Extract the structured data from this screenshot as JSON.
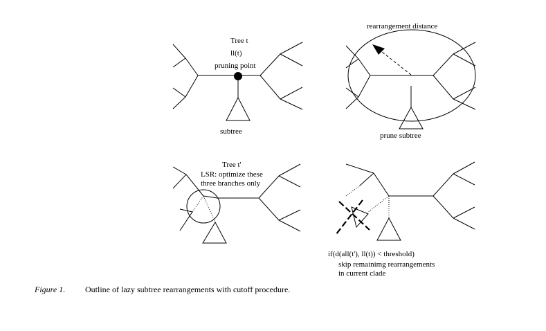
{
  "panel_top_left": {
    "title": "Tree t",
    "ll_label": "ll(t)",
    "pruning_label": "pruning point",
    "subtree_label": "subtree"
  },
  "panel_top_right": {
    "distance_label": "rearrangement distance",
    "prune_label": "prune subtree"
  },
  "panel_bottom_left": {
    "title": "Tree t'",
    "lsr_line1": "LSR: optimize these",
    "lsr_line2": "three branches only"
  },
  "panel_bottom_right": {
    "condition": "if(d(all(t'), ll(t)) < threshold)",
    "skip_line1": "skip remainimg rearrangements",
    "skip_line2": "in current clade"
  },
  "caption": {
    "label": "Figure 1.",
    "text": "Outline of lazy subtree rearrangements with cutoff procedure."
  }
}
